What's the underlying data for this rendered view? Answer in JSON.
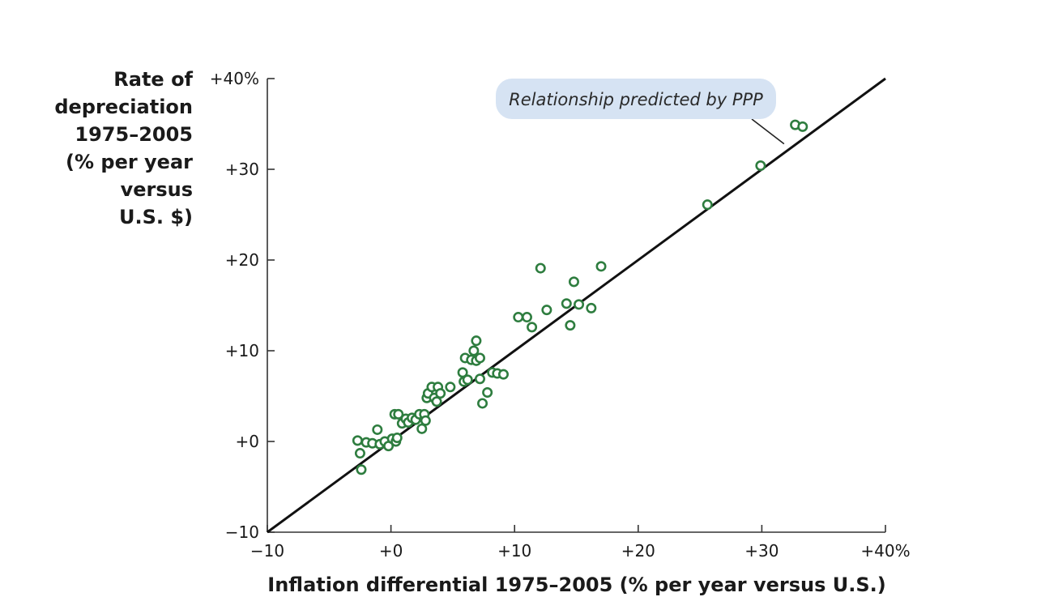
{
  "chart_data": {
    "type": "scatter",
    "title": "",
    "xlabel": "Inflation differential 1975–2005 (% per year versus U.S.)",
    "ylabel_lines": [
      "Rate of",
      "depreciation",
      "1975–2005",
      "(% per year",
      "versus",
      "U.S. $)"
    ],
    "xlim": [
      -10,
      40
    ],
    "ylim": [
      -10,
      40
    ],
    "x_ticks": [
      -10,
      0,
      10,
      20,
      30,
      40
    ],
    "y_ticks": [
      -10,
      0,
      10,
      20,
      30,
      40
    ],
    "x_tick_labels": [
      "−10",
      "+0",
      "+10",
      "+20",
      "+30",
      "+40%"
    ],
    "y_tick_labels": [
      "−10",
      "+0",
      "+10",
      "+20",
      "+30",
      "+40%"
    ],
    "grid": false,
    "point_color": "#2e7d3f",
    "line_color": "#111111",
    "callout_color": "#d6e3f3",
    "reference_line": {
      "name": "Relationship predicted by PPP",
      "from": [
        -10,
        -10
      ],
      "to": [
        40,
        40
      ]
    },
    "annotation": {
      "text": "Relationship predicted by PPP",
      "points_to": [
        31.8,
        32.8
      ]
    },
    "points": [
      {
        "x": -2.7,
        "y": 0.1
      },
      {
        "x": -2.5,
        "y": -1.3
      },
      {
        "x": -2.4,
        "y": -3.1
      },
      {
        "x": -2.0,
        "y": -0.1
      },
      {
        "x": -1.5,
        "y": -0.2
      },
      {
        "x": -1.1,
        "y": 1.3
      },
      {
        "x": -0.9,
        "y": -0.3
      },
      {
        "x": -0.5,
        "y": 0.0
      },
      {
        "x": -0.2,
        "y": -0.5
      },
      {
        "x": 0.1,
        "y": 0.3
      },
      {
        "x": 0.3,
        "y": 3.0
      },
      {
        "x": 0.4,
        "y": 0.0
      },
      {
        "x": 0.5,
        "y": 0.4
      },
      {
        "x": 0.6,
        "y": 3.0
      },
      {
        "x": 0.9,
        "y": 2.0
      },
      {
        "x": 1.2,
        "y": 2.5
      },
      {
        "x": 1.4,
        "y": 2.1
      },
      {
        "x": 1.7,
        "y": 2.6
      },
      {
        "x": 2.0,
        "y": 2.4
      },
      {
        "x": 2.3,
        "y": 3.0
      },
      {
        "x": 2.5,
        "y": 1.4
      },
      {
        "x": 2.7,
        "y": 3.0
      },
      {
        "x": 2.8,
        "y": 2.3
      },
      {
        "x": 2.9,
        "y": 4.8
      },
      {
        "x": 3.0,
        "y": 5.3
      },
      {
        "x": 3.3,
        "y": 6.0
      },
      {
        "x": 3.5,
        "y": 4.8
      },
      {
        "x": 3.7,
        "y": 4.4
      },
      {
        "x": 3.8,
        "y": 6.0
      },
      {
        "x": 4.0,
        "y": 5.3
      },
      {
        "x": 4.8,
        "y": 6.0
      },
      {
        "x": 5.8,
        "y": 7.6
      },
      {
        "x": 5.9,
        "y": 6.6
      },
      {
        "x": 6.0,
        "y": 9.2
      },
      {
        "x": 6.2,
        "y": 6.8
      },
      {
        "x": 6.5,
        "y": 9.0
      },
      {
        "x": 6.7,
        "y": 10.0
      },
      {
        "x": 6.9,
        "y": 8.9
      },
      {
        "x": 6.9,
        "y": 11.1
      },
      {
        "x": 7.2,
        "y": 9.2
      },
      {
        "x": 7.2,
        "y": 6.9
      },
      {
        "x": 7.4,
        "y": 4.2
      },
      {
        "x": 7.8,
        "y": 5.4
      },
      {
        "x": 8.2,
        "y": 7.6
      },
      {
        "x": 8.6,
        "y": 7.5
      },
      {
        "x": 9.1,
        "y": 7.4
      },
      {
        "x": 10.3,
        "y": 13.7
      },
      {
        "x": 11.0,
        "y": 13.7
      },
      {
        "x": 11.4,
        "y": 12.6
      },
      {
        "x": 12.1,
        "y": 19.1
      },
      {
        "x": 12.6,
        "y": 14.5
      },
      {
        "x": 14.2,
        "y": 15.2
      },
      {
        "x": 14.5,
        "y": 12.8
      },
      {
        "x": 14.8,
        "y": 17.6
      },
      {
        "x": 15.2,
        "y": 15.1
      },
      {
        "x": 16.2,
        "y": 14.7
      },
      {
        "x": 17.0,
        "y": 19.3
      },
      {
        "x": 25.6,
        "y": 26.1
      },
      {
        "x": 29.9,
        "y": 30.4
      },
      {
        "x": 32.7,
        "y": 34.9
      },
      {
        "x": 33.3,
        "y": 34.7
      }
    ]
  }
}
